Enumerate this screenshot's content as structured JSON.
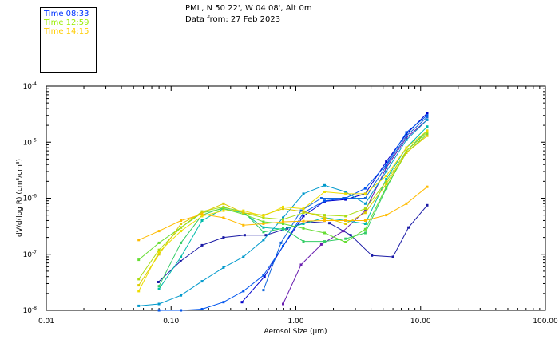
{
  "header": {
    "line1": "PML, N 50 22', W 04 08', Alt 0m",
    "line2": "Data from: 27 Feb 2023"
  },
  "legend": [
    {
      "label": "Time 08:33",
      "color": "#0033ff"
    },
    {
      "label": "Time 12:59",
      "color": "#99ee00"
    },
    {
      "label": "Time 14:15",
      "color": "#ffcc00"
    }
  ],
  "chart_data": {
    "type": "line",
    "xlabel": "Aerosol Size (μm)",
    "ylabel": "dV/d(log R) (cm³/cm³)",
    "x_scale": "log",
    "y_scale": "log",
    "xlim": [
      0.01,
      100
    ],
    "ylim": [
      1e-08,
      0.0001
    ],
    "x_ticks": [
      {
        "value": 0.01,
        "label": "0.01"
      },
      {
        "value": 0.1,
        "label": "0.10"
      },
      {
        "value": 1,
        "label": "1.00"
      },
      {
        "value": 10,
        "label": "10.00"
      },
      {
        "value": 100,
        "label": "100.00"
      }
    ],
    "y_ticks": [
      {
        "value": 1e-08,
        "mantissa": "10",
        "exp": "-8"
      },
      {
        "value": 1e-07,
        "mantissa": "10",
        "exp": "-7"
      },
      {
        "value": 1e-06,
        "mantissa": "10",
        "exp": "-6"
      },
      {
        "value": 1e-05,
        "mantissa": "10",
        "exp": "-5"
      },
      {
        "value": 0.0001,
        "mantissa": "10",
        "exp": "-4"
      }
    ],
    "series": [
      {
        "color": "#1a1aa6",
        "x": [
          0.079,
          0.119,
          0.177,
          0.263,
          0.389,
          0.575,
          0.851,
          1.26,
          1.86,
          2.75,
          4.07,
          6.0,
          8.0,
          11.3
        ],
        "y": [
          3.2e-08,
          7.5e-08,
          1.45e-07,
          2e-07,
          2.2e-07,
          2.2e-07,
          2.9e-07,
          3.8e-07,
          3.6e-07,
          2.2e-07,
          9.5e-08,
          9e-08,
          3e-07,
          7.5e-07
        ]
      },
      {
        "color": "#6a1fb0",
        "x": [
          0.79,
          1.1,
          1.6,
          2.4,
          3.6,
          5.3,
          7.7,
          11.3
        ],
        "y": [
          1.3e-08,
          6.5e-08,
          1.5e-07,
          2.6e-07,
          6e-07,
          3.5e-06,
          1.2e-05,
          2.5e-05
        ]
      },
      {
        "color": "#0000cc",
        "x": [
          0.37,
          0.56,
          0.79,
          1.15,
          1.7,
          2.5,
          3.6,
          5.3,
          7.7,
          11.3
        ],
        "y": [
          1.4e-08,
          4e-08,
          1.4e-07,
          4.8e-07,
          8.8e-07,
          9.5e-07,
          1.2e-06,
          4.5e-06,
          1.4e-05,
          3.3e-05
        ]
      },
      {
        "color": "#1166dd",
        "x": [
          0.55,
          0.76,
          1.1,
          1.6,
          2.4,
          3.6,
          5.3,
          7.7,
          11.3
        ],
        "y": [
          2.3e-08,
          1.6e-07,
          6e-07,
          1e-06,
          1e-06,
          1e-06,
          3.8e-06,
          1.3e-05,
          2.8e-05
        ]
      },
      {
        "color": "#0099cc",
        "x": [
          0.055,
          0.08,
          0.12,
          0.177,
          0.263,
          0.38,
          0.55,
          0.79,
          1.15,
          1.7,
          2.5,
          3.6,
          5.3,
          7.7,
          11.3
        ],
        "y": [
          1.2e-08,
          1.3e-08,
          1.85e-08,
          3.3e-08,
          5.8e-08,
          9e-08,
          1.8e-07,
          4.5e-07,
          1.2e-06,
          1.7e-06,
          1.3e-06,
          8e-07,
          3e-06,
          1.1e-05,
          2.5e-05
        ]
      },
      {
        "color": "#0055ee",
        "x": [
          0.08,
          0.12,
          0.177,
          0.263,
          0.38,
          0.55,
          0.79,
          1.15,
          1.7,
          2.5,
          3.6,
          5.3,
          7.7,
          11.3
        ],
        "y": [
          1e-08,
          1e-08,
          1.05e-08,
          1.4e-08,
          2.2e-08,
          4.2e-08,
          1.4e-07,
          5.5e-07,
          9e-07,
          1e-06,
          1.5e-06,
          4e-06,
          1.5e-05,
          3e-05
        ]
      },
      {
        "color": "#00bbaa",
        "x": [
          0.08,
          0.12,
          0.177,
          0.263,
          0.38,
          0.55,
          0.79,
          1.15,
          1.7,
          2.5,
          3.6,
          5.3,
          7.7,
          11.3
        ],
        "y": [
          2.4e-08,
          9e-08,
          4e-07,
          6.5e-07,
          5.5e-07,
          3e-07,
          2.8e-07,
          3.5e-07,
          4.5e-07,
          4e-07,
          3.5e-07,
          2.2e-06,
          8e-06,
          1.9e-05
        ]
      },
      {
        "color": "#33cc66",
        "x": [
          0.08,
          0.12,
          0.177,
          0.263,
          0.38,
          0.55,
          0.79,
          1.15,
          1.7,
          2.5,
          3.6,
          5.3,
          7.7,
          11.3
        ],
        "y": [
          2.7e-08,
          1.6e-07,
          5e-07,
          6.8e-07,
          5.8e-07,
          2.5e-07,
          2.9e-07,
          1.7e-07,
          1.7e-07,
          1.9e-07,
          2.4e-07,
          1.5e-06,
          7e-06,
          1.6e-05
        ]
      },
      {
        "color": "#66dd33",
        "x": [
          0.055,
          0.08,
          0.12,
          0.177,
          0.263,
          0.38,
          0.55,
          0.79,
          1.15,
          1.7,
          2.5,
          3.6,
          5.3,
          7.7,
          11.3
        ],
        "y": [
          8e-08,
          1.6e-07,
          3e-07,
          5.5e-07,
          6.5e-07,
          5.2e-07,
          3.8e-07,
          3.5e-07,
          2.9e-07,
          2.4e-07,
          1.65e-07,
          2.8e-07,
          1.6e-06,
          6.5e-06,
          1.4e-05
        ]
      },
      {
        "color": "#aadd11",
        "x": [
          0.055,
          0.08,
          0.12,
          0.177,
          0.263,
          0.38,
          0.55,
          0.79,
          1.15,
          1.7,
          2.5,
          3.6,
          5.3,
          7.7,
          11.3
        ],
        "y": [
          3.6e-08,
          1.2e-07,
          3e-07,
          5.8e-07,
          7e-07,
          5.5e-07,
          4.5e-07,
          4.2e-07,
          5.5e-07,
          5e-07,
          4.8e-07,
          6.5e-07,
          2e-06,
          7e-06,
          1.5e-05
        ]
      },
      {
        "color": "#ddcc00",
        "x": [
          0.055,
          0.08,
          0.12,
          0.177,
          0.263,
          0.38,
          0.55,
          0.79,
          1.15,
          1.7,
          2.5,
          3.6,
          5.3,
          7.7,
          11.3
        ],
        "y": [
          2.8e-08,
          1e-07,
          3.5e-07,
          5.5e-07,
          8e-07,
          5.5e-07,
          5e-07,
          6.5e-07,
          5.8e-07,
          4.5e-07,
          3.5e-07,
          5.5e-07,
          1.8e-06,
          6.5e-06,
          1.3e-05
        ]
      },
      {
        "color": "#eedd00",
        "x": [
          0.055,
          0.08,
          0.12,
          0.177,
          0.263,
          0.38,
          0.55,
          0.79,
          1.15,
          1.7,
          2.5,
          3.6,
          5.3,
          7.7,
          11.3
        ],
        "y": [
          2.2e-08,
          1.1e-07,
          2.6e-07,
          4.8e-07,
          6e-07,
          6e-07,
          4.8e-07,
          7e-07,
          6.5e-07,
          1.3e-06,
          1.2e-06,
          1.2e-06,
          2.5e-06,
          8e-06,
          1.6e-05
        ]
      },
      {
        "color": "#ffbb00",
        "x": [
          0.055,
          0.08,
          0.12,
          0.177,
          0.263,
          0.38,
          0.55,
          0.79,
          1.15,
          1.7,
          2.5,
          3.6,
          5.3,
          7.7,
          11.3
        ],
        "y": [
          1.8e-07,
          2.6e-07,
          4e-07,
          5.2e-07,
          4.5e-07,
          3.3e-07,
          3.5e-07,
          3.8e-07,
          3.9e-07,
          4e-07,
          4e-07,
          4e-07,
          5e-07,
          8e-07,
          1.6e-06
        ]
      }
    ]
  }
}
